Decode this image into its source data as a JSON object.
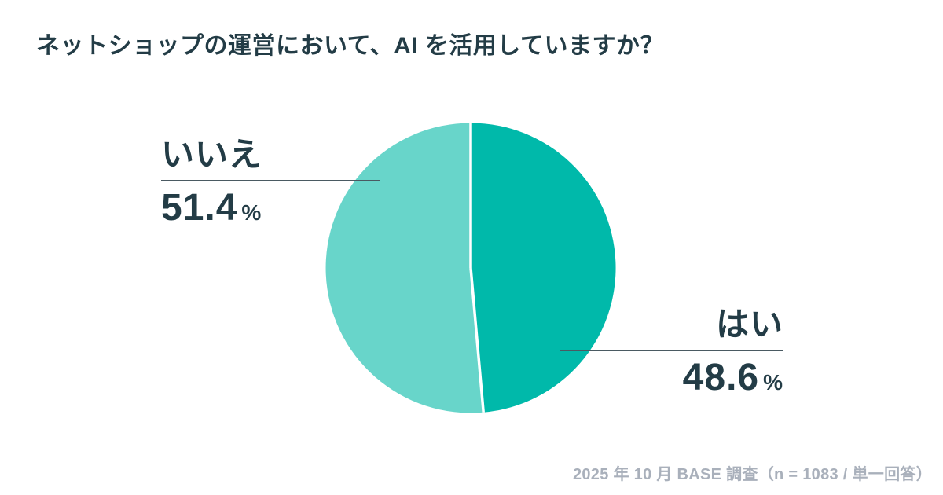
{
  "header": {
    "title": "ネットショップの運営において、AI を活用していますか？"
  },
  "chart_data": {
    "type": "pie",
    "title": "ネットショップの運営において、AI を活用していますか？",
    "start_angle_deg": 0,
    "direction": "clockwise",
    "slices": [
      {
        "key": "yes",
        "label": "はい",
        "value": 48.6,
        "unit": "%",
        "color": "#00b9aa"
      },
      {
        "key": "no",
        "label": "いいえ",
        "value": 51.4,
        "unit": "%",
        "color": "#68d5ca"
      }
    ],
    "divider_color": "#ffffff",
    "legend_position": "callout-labels"
  },
  "callouts": {
    "no": {
      "label": "いいえ",
      "value": "51.4",
      "unit": "%"
    },
    "yes": {
      "label": "はい",
      "value": "48.6",
      "unit": "%"
    }
  },
  "footer": {
    "source_note": "2025 年 10 月 BASE 調査（n = 1083 / 単一回答）"
  },
  "colors": {
    "background": "#ffffff",
    "title_text": "#233c46",
    "value_text": "#233c46",
    "callout_rule": "#4a5a62",
    "source_text": "#a9b0bb",
    "slice_yes": "#00b9aa",
    "slice_no": "#68d5ca"
  }
}
